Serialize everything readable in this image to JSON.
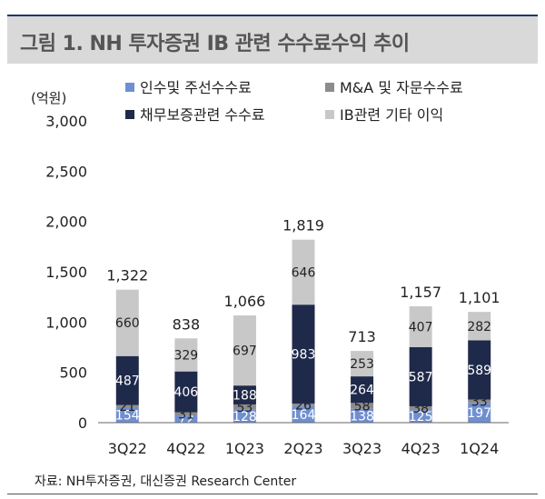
{
  "title": "그림 1. NH 투자증권 IB 관련 수수료수익 추이",
  "source": "자료: NH투자증권, 대신증권 Research Center",
  "chart_data": {
    "type": "bar",
    "stacked": true,
    "unit_label": "(억원)",
    "categories": [
      "3Q22",
      "4Q22",
      "1Q23",
      "2Q23",
      "3Q23",
      "4Q23",
      "1Q24"
    ],
    "series": [
      {
        "name": "인수및 주선수수료",
        "color": "#6f8fd0",
        "label_color": "#ffffff",
        "values": [
          154,
          72,
          128,
          164,
          138,
          125,
          197
        ]
      },
      {
        "name": "M&A 및 자문수수료",
        "color": "#8c8c8c",
        "label_color": "#222222",
        "values": [
          21,
          31,
          53,
          26,
          58,
          38,
          33
        ]
      },
      {
        "name": "채무보증관련 수수료",
        "color": "#1f2a4a",
        "label_color": "#ffffff",
        "values": [
          487,
          406,
          188,
          983,
          264,
          587,
          589
        ]
      },
      {
        "name": "IB관련 기타 이익",
        "color": "#c8c8c8",
        "label_color": "#222222",
        "values": [
          660,
          329,
          697,
          646,
          253,
          407,
          282
        ]
      }
    ],
    "totals": [
      1322,
      838,
      1066,
      1819,
      713,
      1157,
      1101
    ],
    "ylim": [
      0,
      3000
    ],
    "y_ticks": [
      0,
      500,
      1000,
      1500,
      2000,
      2500,
      3000
    ],
    "y_tick_labels": [
      "0",
      "500",
      "1,000",
      "1,500",
      "2,000",
      "2,500",
      "3,000"
    ],
    "total_labels": [
      "1,322",
      "838",
      "1,066",
      "1,819",
      "713",
      "1,157",
      "1,101"
    ],
    "legend_position": "top",
    "grid": false
  }
}
